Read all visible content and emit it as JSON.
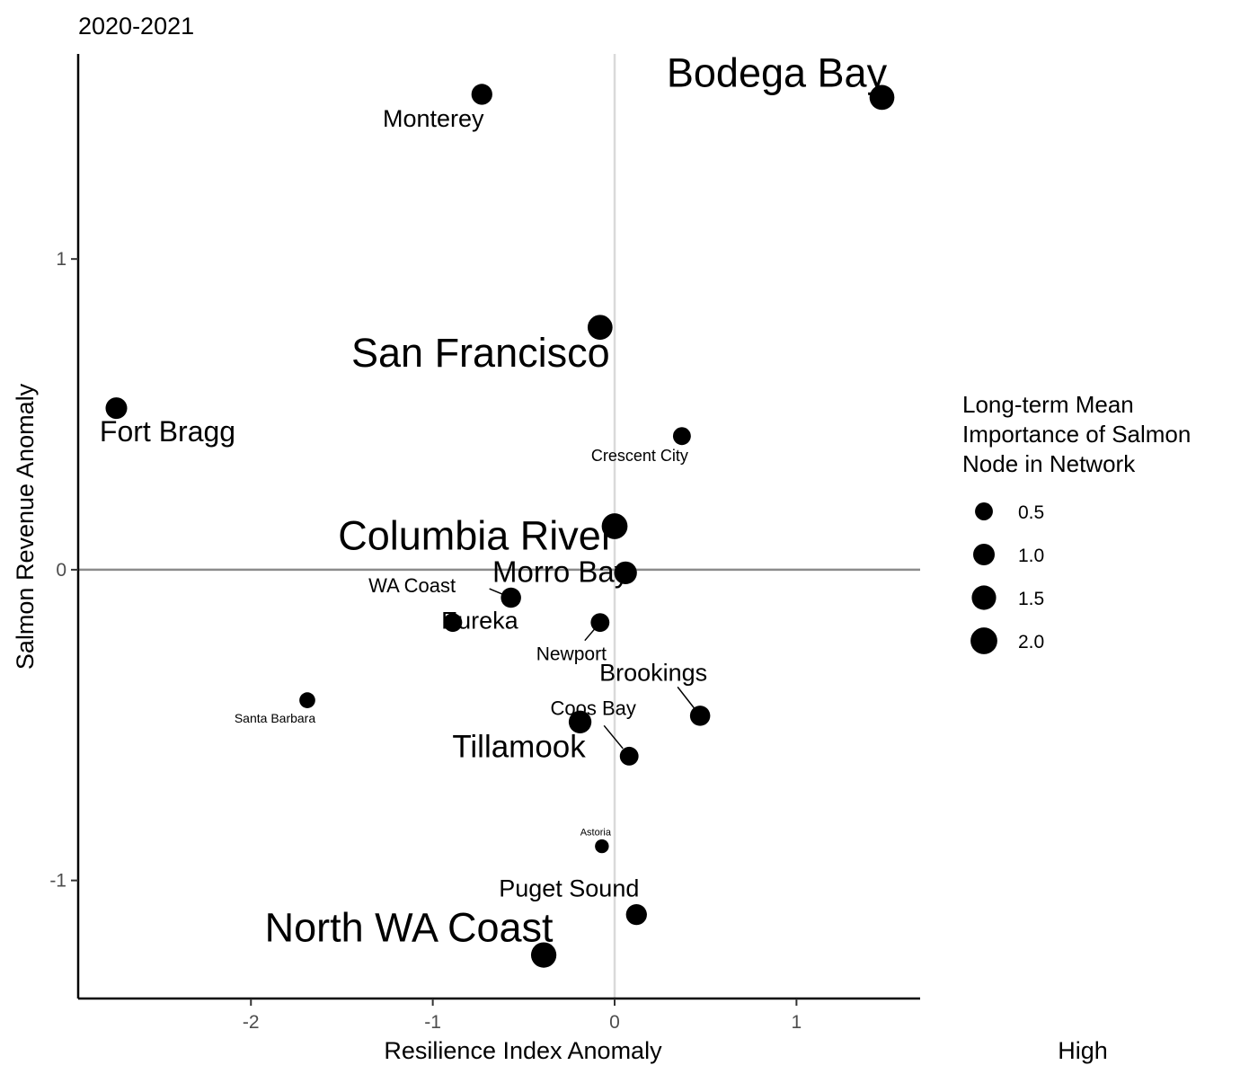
{
  "chart_data": {
    "type": "scatter",
    "title": "2020-2021",
    "xlabel": "Resilience Index Anomaly",
    "ylabel": "Salmon Revenue Anomaly",
    "corner_label": "High",
    "xlim": [
      -2.95,
      1.68
    ],
    "ylim": [
      -1.38,
      1.66
    ],
    "x_ticks": [
      -2,
      -1,
      0,
      1
    ],
    "y_ticks": [
      -1,
      0,
      1
    ],
    "reference_lines": {
      "x": 0,
      "y": 0
    },
    "grid": false,
    "legend": {
      "title": [
        "Long-term Mean",
        "Importance of Salmon",
        "Node in Network"
      ],
      "placement": "right",
      "sizes": [
        0.5,
        1.0,
        1.5,
        2.0
      ],
      "labels": [
        "0.5",
        "1.0",
        "1.5",
        "2.0"
      ]
    },
    "points": [
      {
        "label": "Bodega Bay",
        "x": 1.47,
        "y": 1.52,
        "importance": 1.6
      },
      {
        "label": "Monterey",
        "x": -0.73,
        "y": 1.53,
        "importance": 0.9
      },
      {
        "label": "San Francisco",
        "x": -0.08,
        "y": 0.78,
        "importance": 1.6
      },
      {
        "label": "Fort Bragg",
        "x": -2.74,
        "y": 0.52,
        "importance": 1.0
      },
      {
        "label": "Crescent City",
        "x": 0.37,
        "y": 0.43,
        "importance": 0.5
      },
      {
        "label": "Columbia River",
        "x": 0.0,
        "y": 0.14,
        "importance": 1.8
      },
      {
        "label": "Morro Bay",
        "x": 0.06,
        "y": -0.01,
        "importance": 1.2
      },
      {
        "label": "WA Coast",
        "x": -0.57,
        "y": -0.09,
        "importance": 0.8
      },
      {
        "label": "Eureka",
        "x": -0.89,
        "y": -0.17,
        "importance": 0.6
      },
      {
        "label": "Newport",
        "x": -0.08,
        "y": -0.17,
        "importance": 0.6
      },
      {
        "label": "Santa Barbara",
        "x": -1.69,
        "y": -0.42,
        "importance": 0.3
      },
      {
        "label": "Brookings",
        "x": 0.47,
        "y": -0.47,
        "importance": 0.8
      },
      {
        "label": "Coos Bay",
        "x": 0.08,
        "y": -0.6,
        "importance": 0.6
      },
      {
        "label": "Tillamook",
        "x": -0.19,
        "y": -0.49,
        "importance": 1.2
      },
      {
        "label": "Astoria",
        "x": -0.07,
        "y": -0.89,
        "importance": 0.15
      },
      {
        "label": "Puget Sound",
        "x": 0.12,
        "y": -1.11,
        "importance": 0.9
      },
      {
        "label": "North WA Coast",
        "x": -0.39,
        "y": -1.24,
        "importance": 1.7
      }
    ]
  }
}
